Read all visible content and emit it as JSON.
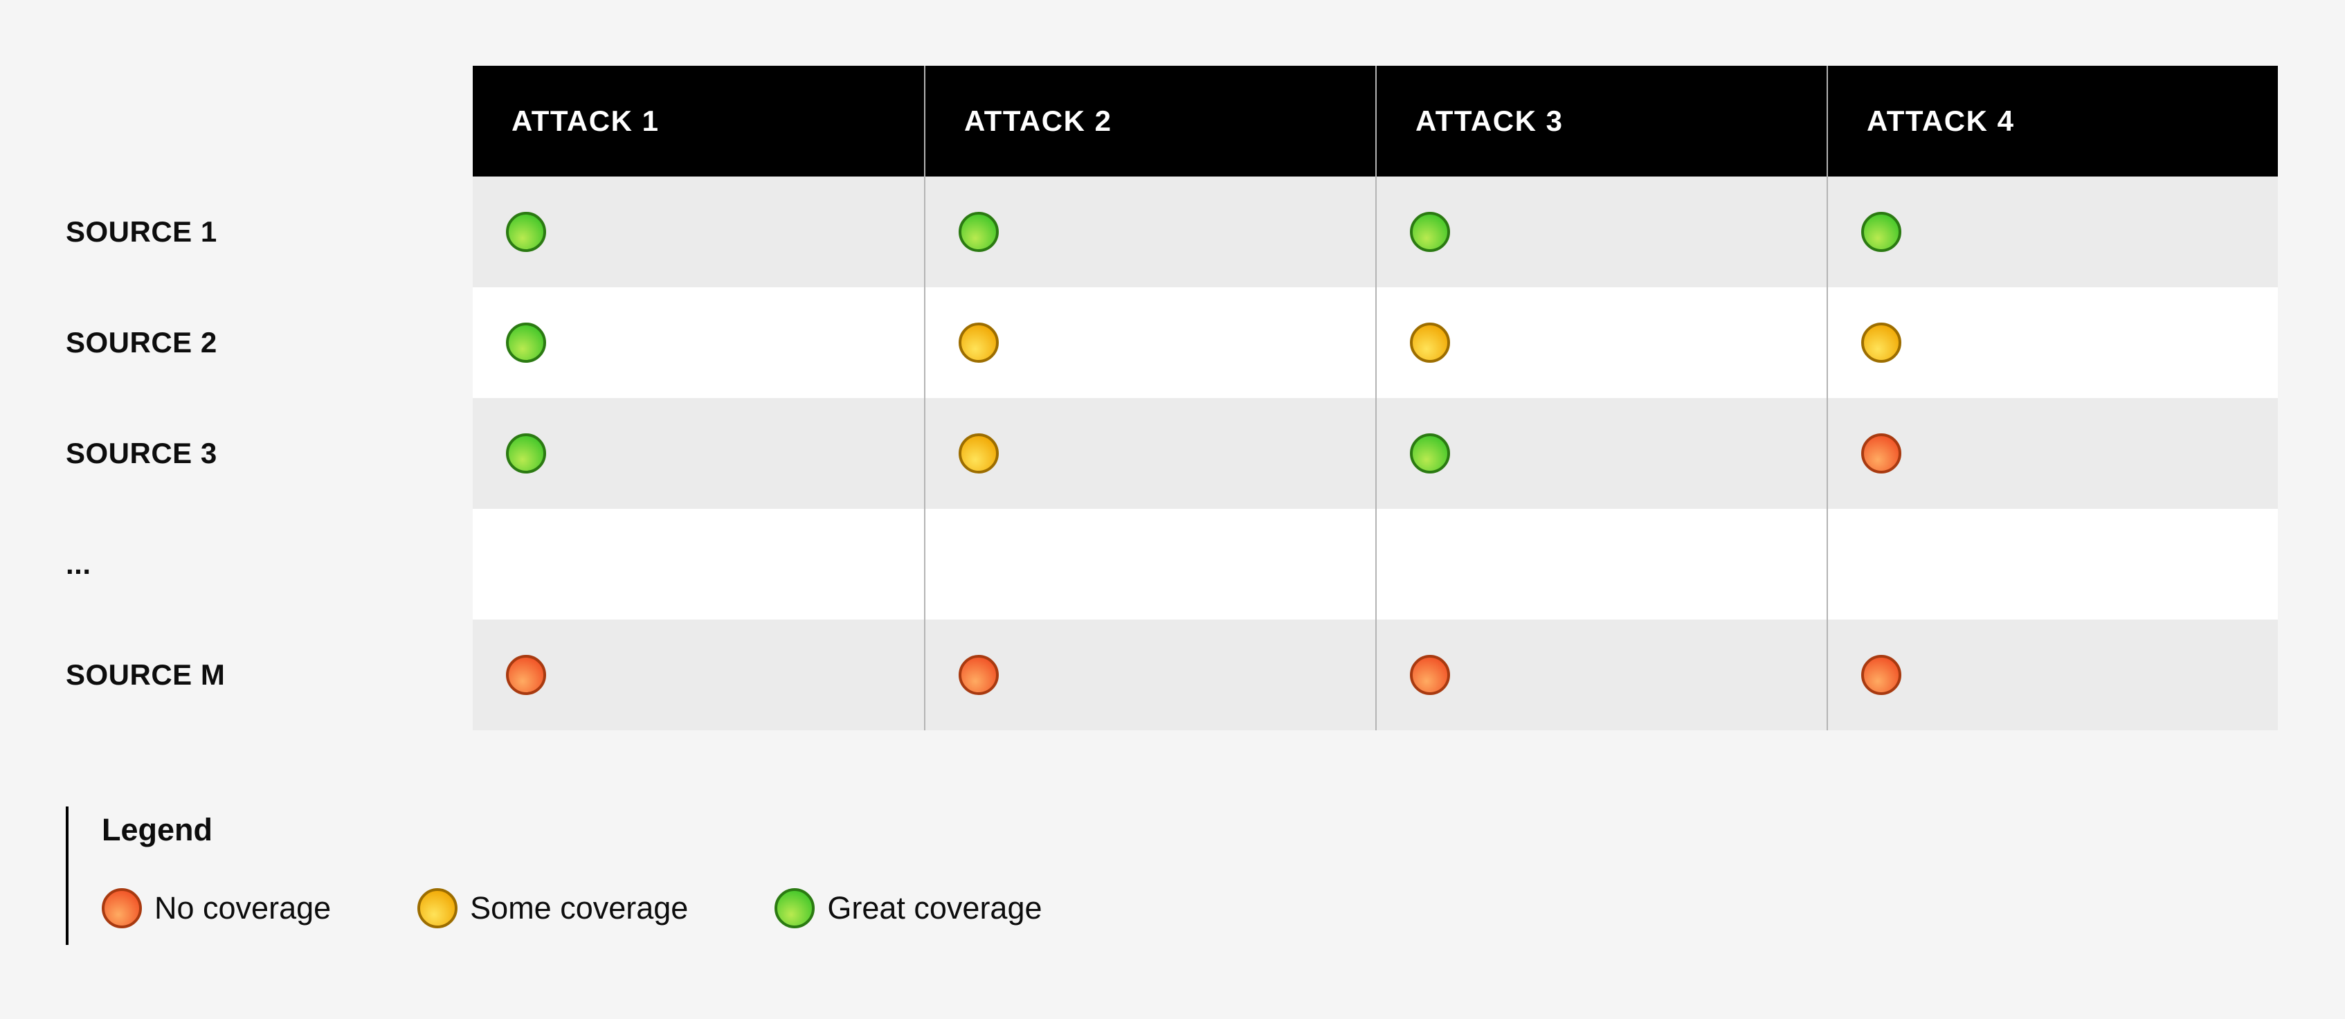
{
  "colors": {
    "page_bg": "#f5f5f5",
    "header_bg": "#000000",
    "header_text": "#ffffff",
    "row_stripe": "#ebebeb",
    "row_plain": "#ffffff",
    "grid_line": "#b4b4b4",
    "label_text": "#0d0d0d",
    "legend_bar": "#000000"
  },
  "status_styles": {
    "none": {
      "start": "#ffab62",
      "end": "#f04e23",
      "border": "#a83a10"
    },
    "some": {
      "start": "#ffe359",
      "end": "#f0a500",
      "border": "#9c6d00"
    },
    "great": {
      "start": "#b9ea50",
      "end": "#3dc528",
      "border": "#2b7a12"
    }
  },
  "chart_data": {
    "type": "heatmap",
    "title": "",
    "value_scale": [
      "none",
      "some",
      "great"
    ],
    "columns": [
      "ATTACK 1",
      "ATTACK 2",
      "ATTACK 3",
      "ATTACK 4"
    ],
    "rows": [
      {
        "label": "SOURCE 1",
        "values": [
          "great",
          "great",
          "great",
          "great"
        ]
      },
      {
        "label": "SOURCE 2",
        "values": [
          "great",
          "some",
          "some",
          "some"
        ]
      },
      {
        "label": "SOURCE 3",
        "values": [
          "great",
          "some",
          "great",
          "none"
        ]
      },
      {
        "label": "...",
        "values": [
          "",
          "",
          "",
          ""
        ]
      },
      {
        "label": "SOURCE M",
        "values": [
          "none",
          "none",
          "none",
          "none"
        ]
      }
    ],
    "legend_title": "Legend",
    "legend_items": [
      {
        "status": "none",
        "label": "No coverage"
      },
      {
        "status": "some",
        "label": "Some coverage"
      },
      {
        "status": "great",
        "label": "Great coverage"
      }
    ],
    "legend_position": "bottom-left",
    "grid": true
  }
}
